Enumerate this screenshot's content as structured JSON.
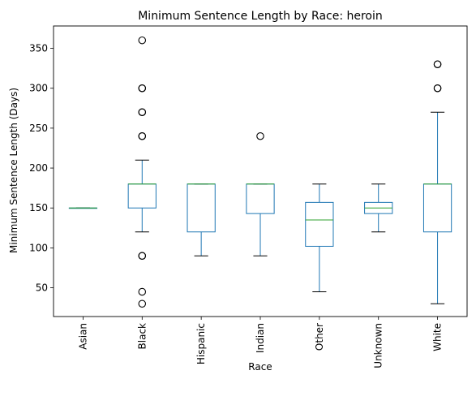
{
  "chart_data": {
    "type": "box",
    "title": "Minimum Sentence Length by Race: heroin",
    "xlabel": "Race",
    "ylabel": "Minimum Sentence Length (Days)",
    "ylim": [
      14,
      378
    ],
    "yticks": [
      50,
      100,
      150,
      200,
      250,
      300,
      350
    ],
    "grid": false,
    "colors": {
      "box": "#1f77b4",
      "median": "#2ca02c",
      "whisker": "#1f77b4",
      "cap": "#000000",
      "flier": "#000000"
    },
    "categories": [
      "Asian",
      "Black",
      "Hispanic",
      "Indian",
      "Other",
      "Unknown",
      "White"
    ],
    "boxes": [
      {
        "category": "Asian",
        "whislo": 150,
        "q1": 150,
        "med": 150,
        "q3": 150,
        "whishi": 150,
        "fliers": []
      },
      {
        "category": "Black",
        "whislo": 120,
        "q1": 150,
        "med": 180,
        "q3": 180,
        "whishi": 210,
        "fliers": [
          30,
          45,
          90,
          90,
          240,
          240,
          270,
          270,
          300,
          300,
          360
        ]
      },
      {
        "category": "Hispanic",
        "whislo": 90,
        "q1": 120,
        "med": 180,
        "q3": 180,
        "whishi": 180,
        "fliers": []
      },
      {
        "category": "Indian",
        "whislo": 90,
        "q1": 143,
        "med": 180,
        "q3": 180,
        "whishi": 180,
        "fliers": [
          240
        ]
      },
      {
        "category": "Other",
        "whislo": 45,
        "q1": 102,
        "med": 135,
        "q3": 157,
        "whishi": 180,
        "fliers": []
      },
      {
        "category": "Unknown",
        "whislo": 120,
        "q1": 143,
        "med": 150,
        "q3": 157,
        "whishi": 180,
        "fliers": []
      },
      {
        "category": "White",
        "whislo": 30,
        "q1": 120,
        "med": 180,
        "q3": 180,
        "whishi": 270,
        "fliers": [
          300,
          300,
          330,
          330
        ]
      }
    ]
  }
}
